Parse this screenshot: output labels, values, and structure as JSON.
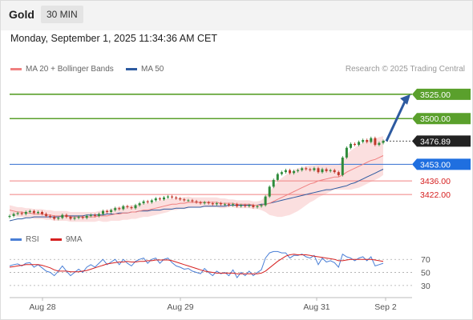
{
  "header": {
    "title": "Gold",
    "timeframe": "30 MIN"
  },
  "datetime": "Monday, September 1, 2025 11:34:36 AM CET",
  "legend": {
    "bb": {
      "label": "MA 20 + Bollinger Bands",
      "color": "#f08080"
    },
    "ma50": {
      "label": "MA 50",
      "color": "#2d5aa0"
    }
  },
  "credit": "Research © 2025 Trading Central",
  "colors": {
    "resistance": "#5aa02c",
    "support": "#f08080",
    "pivot": "#4a7fd6",
    "current": "#222222",
    "arrow": "#2d5aa0",
    "candle_up": "#2e8b3a",
    "candle_down": "#c0392b",
    "rsi": "#4a7fd6",
    "rsi_ma": "#d62020"
  },
  "chart_data": [
    {
      "type": "candlestick",
      "title": "Gold",
      "x_labels": [
        "Aug 28",
        "Aug 29",
        "Aug 31",
        "Sep 2"
      ],
      "ylim": [
        3395,
        3538
      ],
      "levels": [
        {
          "value": 3525.0,
          "label": "3525.00",
          "kind": "resistance"
        },
        {
          "value": 3500.0,
          "label": "3500.00",
          "kind": "resistance"
        },
        {
          "value": 3476.89,
          "label": "3476.89",
          "kind": "current"
        },
        {
          "value": 3453.0,
          "label": "3453.00",
          "kind": "pivot"
        },
        {
          "value": 3436.0,
          "label": "3436.00",
          "kind": "support"
        },
        {
          "value": 3422.0,
          "label": "3422.00",
          "kind": "support"
        }
      ],
      "arrow": {
        "from": 3476.89,
        "to": 3525.0,
        "direction": "up"
      },
      "close": [
        3400,
        3402,
        3403,
        3402,
        3404,
        3405,
        3403,
        3404,
        3402,
        3400,
        3399,
        3397,
        3398,
        3401,
        3399,
        3397,
        3398,
        3399,
        3398,
        3400,
        3401,
        3400,
        3402,
        3405,
        3404,
        3406,
        3408,
        3407,
        3410,
        3409,
        3408,
        3411,
        3413,
        3415,
        3414,
        3416,
        3418,
        3417,
        3419,
        3420,
        3419,
        3418,
        3417,
        3416,
        3416,
        3415,
        3414,
        3413,
        3414,
        3413,
        3412,
        3413,
        3412,
        3412,
        3411,
        3412,
        3410,
        3411,
        3410,
        3411,
        3409,
        3410,
        3411,
        3420,
        3430,
        3437,
        3443,
        3445,
        3447,
        3444,
        3446,
        3447,
        3449,
        3448,
        3447,
        3449,
        3445,
        3448,
        3446,
        3447,
        3445,
        3442,
        3460,
        3470,
        3474,
        3473,
        3476,
        3478,
        3476,
        3480,
        3473,
        3475,
        3477
      ],
      "ma20": [
        3406,
        3405,
        3404,
        3404,
        3403,
        3403,
        3402,
        3402,
        3402,
        3401,
        3401,
        3400,
        3400,
        3400,
        3400,
        3399,
        3399,
        3399,
        3399,
        3399,
        3399,
        3399,
        3400,
        3400,
        3400,
        3401,
        3402,
        3402,
        3403,
        3403,
        3404,
        3404,
        3405,
        3406,
        3406,
        3407,
        3408,
        3409,
        3410,
        3411,
        3412,
        3412,
        3413,
        3413,
        3414,
        3414,
        3414,
        3414,
        3414,
        3414,
        3414,
        3414,
        3413,
        3413,
        3413,
        3413,
        3412,
        3412,
        3412,
        3412,
        3411,
        3411,
        3411,
        3412,
        3413,
        3415,
        3417,
        3419,
        3421,
        3423,
        3425,
        3427,
        3429,
        3431,
        3433,
        3434,
        3436,
        3437,
        3438,
        3439,
        3440,
        3440,
        3442,
        3445,
        3447,
        3449,
        3451,
        3453,
        3455,
        3457,
        3458,
        3460,
        3462
      ],
      "ma50": [
        3395,
        3396,
        3397,
        3397,
        3398,
        3398,
        3399,
        3399,
        3399,
        3399,
        3399,
        3399,
        3399,
        3400,
        3400,
        3400,
        3400,
        3400,
        3400,
        3401,
        3401,
        3401,
        3401,
        3401,
        3402,
        3402,
        3402,
        3403,
        3403,
        3403,
        3404,
        3404,
        3405,
        3405,
        3405,
        3406,
        3406,
        3406,
        3407,
        3407,
        3407,
        3408,
        3408,
        3408,
        3409,
        3409,
        3409,
        3409,
        3410,
        3410,
        3410,
        3410,
        3410,
        3410,
        3411,
        3411,
        3411,
        3411,
        3411,
        3411,
        3411,
        3411,
        3412,
        3412,
        3413,
        3414,
        3415,
        3416,
        3417,
        3418,
        3419,
        3420,
        3421,
        3422,
        3423,
        3424,
        3425,
        3426,
        3427,
        3427,
        3428,
        3429,
        3430,
        3431,
        3433,
        3434,
        3436,
        3438,
        3440,
        3442,
        3444,
        3446,
        3448
      ],
      "bb_width": [
        5,
        5,
        5,
        5,
        5,
        5,
        5,
        5,
        5,
        5,
        5,
        5,
        5,
        5,
        5,
        5,
        5,
        5,
        5,
        5,
        5,
        5,
        5,
        6,
        6,
        6,
        7,
        7,
        7,
        7,
        7,
        7,
        7,
        7,
        7,
        7,
        7,
        7,
        7,
        7,
        6,
        6,
        6,
        6,
        6,
        5,
        5,
        5,
        5,
        5,
        5,
        5,
        5,
        5,
        4,
        4,
        4,
        4,
        4,
        4,
        4,
        4,
        5,
        8,
        12,
        15,
        18,
        20,
        21,
        22,
        22,
        22,
        21,
        20,
        19,
        18,
        17,
        16,
        15,
        14,
        13,
        13,
        15,
        18,
        20,
        21,
        22,
        22,
        22,
        22,
        21,
        21,
        20
      ]
    },
    {
      "type": "line",
      "series": [
        {
          "name": "RSI",
          "color": "#4a7fd6",
          "values": [
            60,
            62,
            63,
            60,
            64,
            65,
            58,
            62,
            57,
            52,
            50,
            45,
            52,
            60,
            52,
            45,
            50,
            55,
            50,
            58,
            62,
            58,
            64,
            70,
            62,
            66,
            70,
            62,
            70,
            64,
            60,
            67,
            70,
            72,
            64,
            70,
            72,
            64,
            70,
            72,
            65,
            60,
            58,
            55,
            56,
            52,
            50,
            48,
            56,
            50,
            45,
            52,
            48,
            50,
            45,
            54,
            42,
            50,
            45,
            52,
            45,
            50,
            54,
            72,
            80,
            82,
            82,
            80,
            80,
            72,
            76,
            76,
            78,
            74,
            72,
            76,
            62,
            72,
            66,
            68,
            65,
            58,
            78,
            74,
            72,
            68,
            72,
            74,
            68,
            74,
            60,
            62,
            64
          ]
        },
        {
          "name": "9MA",
          "color": "#d62020",
          "values": [
            58,
            59,
            60,
            61,
            62,
            62,
            62,
            62,
            61,
            59,
            57,
            54,
            52,
            52,
            52,
            51,
            51,
            51,
            52,
            53,
            55,
            57,
            59,
            61,
            63,
            64,
            65,
            66,
            66,
            67,
            66,
            66,
            67,
            67,
            68,
            68,
            69,
            69,
            69,
            69,
            68,
            66,
            64,
            62,
            60,
            58,
            56,
            54,
            52,
            51,
            50,
            49,
            49,
            49,
            49,
            49,
            48,
            48,
            48,
            48,
            48,
            48,
            49,
            52,
            57,
            62,
            67,
            71,
            75,
            77,
            78,
            77,
            77,
            77,
            76,
            75,
            74,
            73,
            72,
            71,
            70,
            68,
            68,
            69,
            70,
            70,
            70,
            70,
            70,
            70,
            69,
            68,
            67
          ]
        }
      ],
      "ylim": [
        20,
        85
      ],
      "yticks": [
        70,
        50,
        30
      ],
      "legend": [
        "RSI",
        "9MA"
      ]
    }
  ]
}
